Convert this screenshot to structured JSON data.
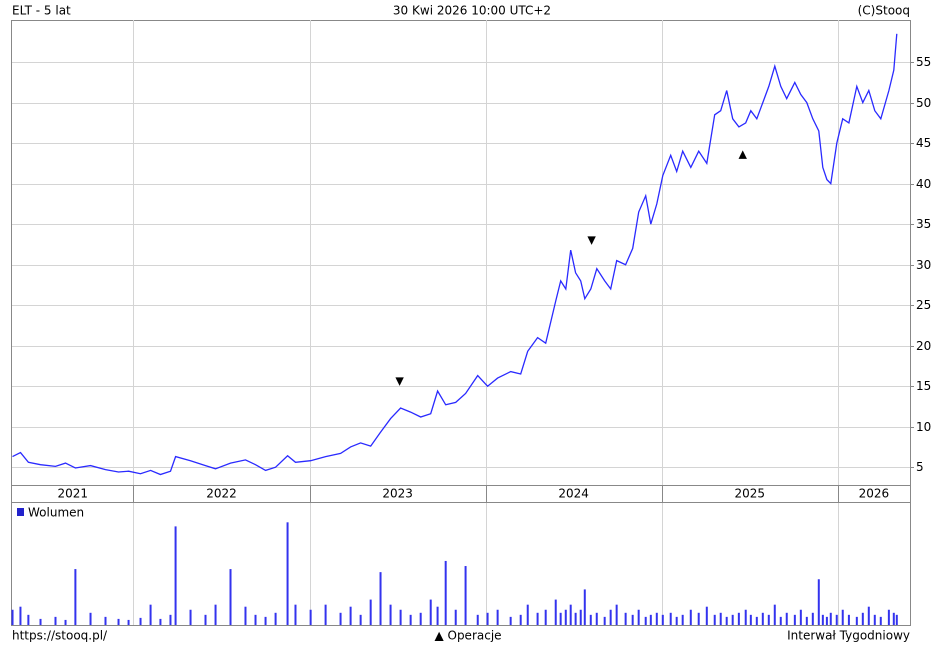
{
  "chart_data": {
    "type": "line",
    "title": "ELT - 5 lat",
    "subtitle": "30 Kwi 2026 10:00 UTC+2",
    "source": "(C)Stooq",
    "color": "#2a2aff",
    "x": [
      2021.313,
      2021.358,
      2021.403,
      2021.472,
      2021.557,
      2021.614,
      2021.67,
      2021.756,
      2021.841,
      2021.915,
      2021.972,
      2022.04,
      2022.097,
      2022.153,
      2022.21,
      2022.239,
      2022.324,
      2022.409,
      2022.466,
      2022.551,
      2022.636,
      2022.693,
      2022.75,
      2022.807,
      2022.875,
      2022.92,
      2023.006,
      2023.091,
      2023.176,
      2023.233,
      2023.29,
      2023.347,
      2023.403,
      2023.46,
      2023.517,
      2023.574,
      2023.631,
      2023.688,
      2023.727,
      2023.773,
      2023.83,
      2023.886,
      2023.955,
      2024.011,
      2024.068,
      2024.142,
      2024.199,
      2024.239,
      2024.295,
      2024.341,
      2024.398,
      2024.426,
      2024.455,
      2024.483,
      2024.511,
      2024.54,
      2024.563,
      2024.597,
      2024.631,
      2024.676,
      2024.71,
      2024.744,
      2024.795,
      2024.835,
      2024.869,
      2024.909,
      2024.938,
      2024.972,
      2025.006,
      2025.051,
      2025.085,
      2025.119,
      2025.165,
      2025.21,
      2025.256,
      2025.301,
      2025.335,
      2025.369,
      2025.403,
      2025.438,
      2025.477,
      2025.506,
      2025.54,
      2025.574,
      2025.608,
      2025.642,
      2025.676,
      2025.71,
      2025.756,
      2025.79,
      2025.824,
      2025.858,
      2025.892,
      2025.915,
      2025.938,
      2025.96,
      2025.994,
      2026.028,
      2026.063,
      2026.108,
      2026.142,
      2026.176,
      2026.21,
      2026.244,
      2026.29,
      2026.318,
      2026.335
    ],
    "values": [
      6.3,
      6.8,
      5.6,
      5.3,
      5.1,
      5.5,
      4.9,
      5.2,
      4.7,
      4.4,
      4.5,
      4.2,
      4.6,
      4.1,
      4.5,
      6.3,
      5.8,
      5.2,
      4.8,
      5.5,
      5.9,
      5.3,
      4.6,
      5.0,
      6.4,
      5.6,
      5.8,
      6.3,
      6.7,
      7.5,
      8.0,
      7.6,
      9.3,
      11.0,
      12.3,
      11.8,
      11.2,
      11.6,
      14.4,
      12.7,
      13.0,
      14.1,
      16.3,
      15.0,
      16.0,
      16.8,
      16.5,
      19.3,
      21.0,
      20.3,
      25.5,
      28.0,
      27.0,
      31.8,
      29.0,
      28.0,
      25.8,
      27.0,
      29.5,
      28.0,
      27.0,
      30.5,
      30.0,
      32.0,
      36.5,
      38.5,
      35.0,
      37.5,
      41.0,
      43.5,
      41.5,
      44.0,
      42.0,
      44.0,
      42.5,
      48.5,
      49.0,
      51.5,
      48.0,
      47.0,
      47.5,
      49.0,
      48.0,
      50.0,
      52.0,
      54.5,
      52.0,
      50.5,
      52.5,
      51.0,
      50.0,
      48.0,
      46.5,
      42.0,
      40.5,
      40.0,
      45.0,
      48.0,
      47.5,
      52.0,
      50.0,
      51.5,
      49.0,
      48.0,
      51.5,
      54.0,
      58.5
    ],
    "xlim": [
      2021.31,
      2026.41
    ],
    "xticks": [
      2022,
      2023,
      2024,
      2025,
      2026
    ],
    "year_labels": [
      "2021",
      "2022",
      "2023",
      "2024",
      "2025",
      "2026"
    ],
    "ylim": [
      2.8,
      60.2
    ],
    "yticks": [
      5,
      10,
      15,
      20,
      25,
      30,
      35,
      40,
      45,
      50,
      55
    ],
    "grid": true,
    "markers": [
      {
        "x": 2023.511,
        "y": 15.6,
        "label": "▼"
      },
      {
        "x": 2024.602,
        "y": 33.0,
        "label": "▼"
      },
      {
        "x": 2025.46,
        "y": 43.6,
        "label": "▲"
      }
    ],
    "volume": {
      "name": "Wolumen",
      "color": "#3333ee",
      "ylim": [
        0,
        120
      ],
      "values": [
        15,
        18,
        10,
        6,
        8,
        5,
        55,
        12,
        8,
        6,
        5,
        7,
        20,
        6,
        10,
        97,
        15,
        10,
        20,
        55,
        18,
        10,
        8,
        12,
        101,
        20,
        15,
        20,
        12,
        18,
        10,
        25,
        52,
        20,
        15,
        10,
        12,
        25,
        18,
        63,
        15,
        58,
        10,
        12,
        15,
        8,
        10,
        20,
        12,
        15,
        25,
        12,
        15,
        20,
        12,
        15,
        35,
        10,
        12,
        8,
        15,
        20,
        12,
        10,
        15,
        8,
        10,
        12,
        10,
        12,
        8,
        10,
        15,
        12,
        18,
        10,
        12,
        8,
        10,
        12,
        15,
        10,
        8,
        12,
        10,
        20,
        8,
        12,
        10,
        15,
        8,
        12,
        45,
        10,
        8,
        12,
        10,
        15,
        10,
        8,
        12,
        18,
        10,
        8,
        15,
        12,
        10
      ]
    },
    "footer": {
      "url": "https://stooq.pl/",
      "legend": "▲ Operacje",
      "interval": "Interwał Tygodniowy"
    }
  }
}
